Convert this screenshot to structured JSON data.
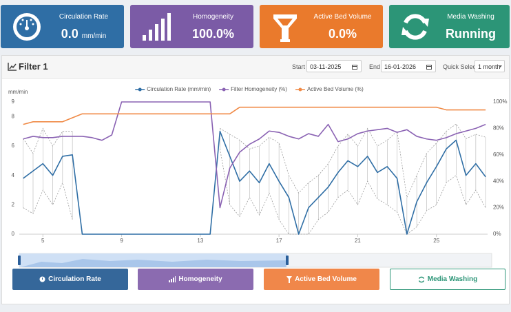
{
  "cards": [
    {
      "title": "Circulation Rate",
      "value": "0.0",
      "unit": "mm/min"
    },
    {
      "title": "Homogeneity",
      "value": "100.0%"
    },
    {
      "title": "Active Bed Volume",
      "value": "0.0%"
    },
    {
      "title": "Media Washing",
      "value": "Running"
    }
  ],
  "filter": {
    "title": "Filter 1",
    "start_label": "Start",
    "start": "03-11-2025",
    "end_label": "End",
    "end": "16-01-2026",
    "quick_select_label": "Quick Select",
    "quick_select": "1 month"
  },
  "buttons": [
    "Circulation Rate",
    "Homogeneity",
    "Active Bed Volume",
    "Media Washing"
  ],
  "chart_data": {
    "type": "line",
    "y_label": "mm/min",
    "x": [
      4,
      4.5,
      5,
      5.5,
      6,
      6.5,
      7,
      7.5,
      8,
      8.5,
      9,
      9.5,
      10,
      10.5,
      11,
      11.5,
      12,
      12.5,
      13,
      13.5,
      14,
      14.5,
      15,
      15.5,
      16,
      16.5,
      17,
      17.5,
      18,
      18.5,
      19,
      19.5,
      20,
      20.5,
      21,
      21.5,
      22,
      22.5,
      23,
      23.5,
      24,
      24.5,
      25,
      25.5,
      26,
      26.5,
      27,
      27.5
    ],
    "series": [
      {
        "name": "Circulation Rate (mm/min)",
        "color": "#2f6ea5",
        "values": [
          3.8,
          4.3,
          4.8,
          4.0,
          5.3,
          5.4,
          0,
          0,
          0,
          0,
          0,
          0,
          0,
          0,
          0,
          0,
          0,
          0,
          0,
          0,
          7.0,
          5.3,
          3.6,
          4.3,
          3.5,
          4.8,
          3.6,
          2.5,
          0,
          1.8,
          2.5,
          3.2,
          4.2,
          5.0,
          4.6,
          5.3,
          4.2,
          4.6,
          3.8,
          0,
          2.2,
          3.5,
          4.6,
          5.8,
          6.4,
          4.0,
          4.8,
          3.9
        ],
        "low": [
          1.8,
          1.4,
          3.0,
          2.0,
          3.5,
          1.0,
          null,
          null,
          null,
          null,
          null,
          null,
          null,
          null,
          null,
          null,
          null,
          null,
          null,
          null,
          5.8,
          2.0,
          1.2,
          2.5,
          1.3,
          2.8,
          1.0,
          0,
          0,
          0,
          1.0,
          1.5,
          2.5,
          3.0,
          2.0,
          3.6,
          2.4,
          2.0,
          1.5,
          0,
          0.5,
          1.6,
          2.0,
          3.5,
          4.0,
          2.0,
          3.0,
          1.8
        ],
        "high": [
          6.5,
          5.5,
          7.2,
          6.0,
          7.0,
          7.0,
          null,
          null,
          null,
          null,
          null,
          null,
          null,
          null,
          null,
          null,
          null,
          null,
          null,
          null,
          7.2,
          6.8,
          6.4,
          5.8,
          6.0,
          6.6,
          6.2,
          4.0,
          2.8,
          3.5,
          4.0,
          4.8,
          6.0,
          6.8,
          6.0,
          7.2,
          6.0,
          6.4,
          7.0,
          2.5,
          4.0,
          5.5,
          6.2,
          7.0,
          7.5,
          6.5,
          6.8,
          6.6
        ]
      },
      {
        "name": "Filter Homogeneity (%)",
        "color": "#8a62b3",
        "axis": "y2",
        "values": [
          72,
          74,
          73,
          73,
          74,
          74,
          74,
          73,
          71,
          75,
          100,
          100,
          100,
          100,
          100,
          100,
          100,
          100,
          100,
          100,
          20,
          50,
          62,
          68,
          72,
          78,
          77,
          74,
          72,
          76,
          74,
          83,
          70,
          72,
          76,
          78,
          79,
          80,
          77,
          79,
          74,
          72,
          71,
          73,
          76,
          78,
          80,
          83
        ]
      },
      {
        "name": "Active Bed Volume (%)",
        "color": "#f08a46",
        "axis": "y2",
        "values": [
          83,
          85,
          85,
          85,
          85,
          88,
          91,
          91,
          91,
          91,
          91,
          91,
          91,
          91,
          91,
          91,
          91,
          91,
          91,
          91,
          91,
          91,
          96,
          96,
          96,
          96,
          96,
          96,
          96,
          96,
          96,
          96,
          96,
          96,
          96,
          96,
          96,
          96,
          96,
          96,
          96,
          96,
          96,
          94,
          94,
          94,
          94,
          94
        ]
      }
    ],
    "xlim": [
      3.8,
      27.6
    ],
    "xticks": [
      5,
      9,
      13,
      17,
      21,
      25
    ],
    "ylim": [
      0,
      9
    ],
    "yticks": [
      0,
      2,
      4,
      6,
      8,
      9
    ],
    "y2lim": [
      0,
      100
    ],
    "y2ticks": [
      {
        "value": 0,
        "label": "0%"
      },
      {
        "value": 20,
        "label": "20%"
      },
      {
        "value": 40,
        "label": "40%"
      },
      {
        "value": 60,
        "label": "60%"
      },
      {
        "value": 80,
        "label": "80%"
      },
      {
        "value": 100,
        "label": "100%"
      }
    ],
    "grid": false,
    "legend": "top"
  }
}
